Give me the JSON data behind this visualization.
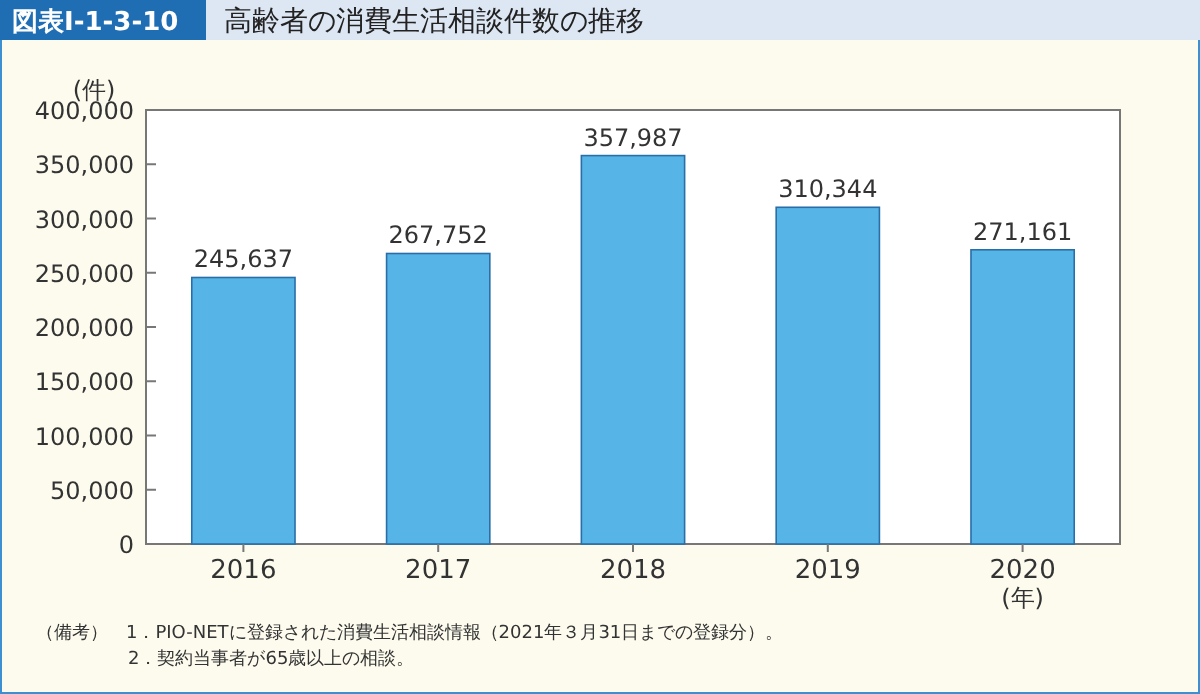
{
  "chart_data": {
    "type": "bar",
    "title": "図表Ⅰ-1-3-10",
    "subtitle": "高齢者の消費生活相談件数の推移",
    "ylabel": "(件)",
    "xlabel": "(年)",
    "categories": [
      "2016",
      "2017",
      "2018",
      "2019",
      "2020"
    ],
    "values": [
      245637,
      267752,
      357987,
      310344,
      271161
    ],
    "color": "#56b4e7",
    "value_labels": [
      "245,637",
      "267,752",
      "357,987",
      "310,344",
      "271,161"
    ],
    "grid": false,
    "ylim": [
      0,
      400000
    ],
    "yticks": [
      {
        "value": 0,
        "label": "0"
      },
      {
        "value": 50000,
        "label": "50,000"
      },
      {
        "value": 100000,
        "label": "100,000"
      },
      {
        "value": 150000,
        "label": "150,000"
      },
      {
        "value": 200000,
        "label": "200,000"
      },
      {
        "value": 250000,
        "label": "250,000"
      },
      {
        "value": 300000,
        "label": "300,000"
      },
      {
        "value": 350000,
        "label": "350,000"
      },
      {
        "value": 400000,
        "label": "400,000"
      }
    ],
    "annotations": [
      "（備考）　1．PIO-NETに登録された消費生活相談情報（2021年３月31日までの登録分）。",
      "2．契約当事者が65歳以上の相談。"
    ]
  }
}
